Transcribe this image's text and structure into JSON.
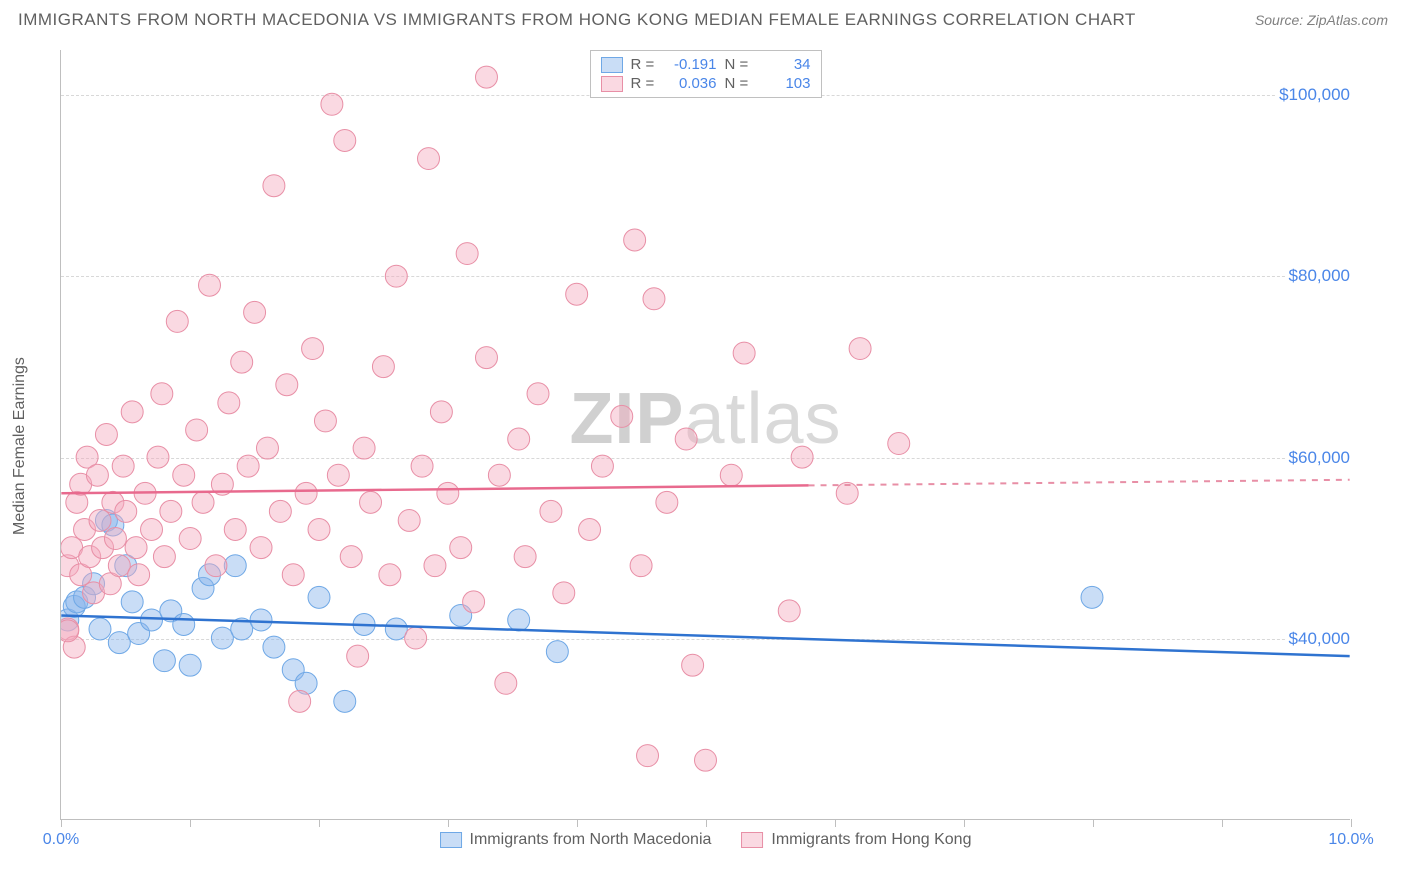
{
  "title": "IMMIGRANTS FROM NORTH MACEDONIA VS IMMIGRANTS FROM HONG KONG MEDIAN FEMALE EARNINGS CORRELATION CHART",
  "source": "Source: ZipAtlas.com",
  "ylabel": "Median Female Earnings",
  "watermark_zip": "ZIP",
  "watermark_atlas": "atlas",
  "chart": {
    "type": "scatter",
    "xlim": [
      0,
      10
    ],
    "ylim": [
      20000,
      105000
    ],
    "xticks": [
      0,
      1,
      2,
      3,
      4,
      5,
      6,
      7,
      8,
      9,
      10
    ],
    "xtick_labels": {
      "0": "0.0%",
      "10": "10.0%"
    },
    "yticks": [
      40000,
      60000,
      80000,
      100000
    ],
    "ytick_labels": {
      "40000": "$40,000",
      "60000": "$60,000",
      "80000": "$80,000",
      "100000": "$100,000"
    },
    "grid_color": "#d8d8d8",
    "axis_color": "#bfbfbf",
    "background_color": "#ffffff",
    "tick_label_color": "#4a86e8",
    "point_radius": 11
  },
  "series": [
    {
      "id": "macedonia",
      "label": "Immigrants from North Macedonia",
      "fill_color": "rgba(135,180,235,0.45)",
      "stroke_color": "#6fa8e6",
      "line_color": "#2f73d0",
      "R": "-0.191",
      "N": "34",
      "trend": {
        "x1": 0.0,
        "y1": 42500,
        "x2": 10.0,
        "y2": 38000,
        "solid_until_x": 10.0
      },
      "points": [
        [
          0.05,
          42000
        ],
        [
          0.1,
          43500
        ],
        [
          0.12,
          44000
        ],
        [
          0.18,
          44500
        ],
        [
          0.25,
          46000
        ],
        [
          0.3,
          41000
        ],
        [
          0.35,
          53000
        ],
        [
          0.4,
          52500
        ],
        [
          0.45,
          39500
        ],
        [
          0.5,
          48000
        ],
        [
          0.55,
          44000
        ],
        [
          0.6,
          40500
        ],
        [
          0.7,
          42000
        ],
        [
          0.8,
          37500
        ],
        [
          0.85,
          43000
        ],
        [
          0.95,
          41500
        ],
        [
          1.0,
          37000
        ],
        [
          1.1,
          45500
        ],
        [
          1.15,
          47000
        ],
        [
          1.25,
          40000
        ],
        [
          1.35,
          48000
        ],
        [
          1.4,
          41000
        ],
        [
          1.55,
          42000
        ],
        [
          1.65,
          39000
        ],
        [
          1.8,
          36500
        ],
        [
          1.9,
          35000
        ],
        [
          2.0,
          44500
        ],
        [
          2.2,
          33000
        ],
        [
          2.35,
          41500
        ],
        [
          2.6,
          41000
        ],
        [
          3.1,
          42500
        ],
        [
          3.55,
          42000
        ],
        [
          3.85,
          38500
        ],
        [
          8.0,
          44500
        ]
      ]
    },
    {
      "id": "hongkong",
      "label": "Immigrants from Hong Kong",
      "fill_color": "rgba(245,170,190,0.45)",
      "stroke_color": "#e88fa6",
      "line_color": "#e86a8e",
      "R": "0.036",
      "N": "103",
      "trend": {
        "x1": 0.0,
        "y1": 56000,
        "x2": 10.0,
        "y2": 57500,
        "solid_until_x": 5.8
      },
      "points": [
        [
          0.05,
          41000
        ],
        [
          0.05,
          48000
        ],
        [
          0.08,
          50000
        ],
        [
          0.1,
          39000
        ],
        [
          0.12,
          55000
        ],
        [
          0.15,
          47000
        ],
        [
          0.15,
          57000
        ],
        [
          0.18,
          52000
        ],
        [
          0.2,
          60000
        ],
        [
          0.22,
          49000
        ],
        [
          0.25,
          45000
        ],
        [
          0.28,
          58000
        ],
        [
          0.3,
          53000
        ],
        [
          0.32,
          50000
        ],
        [
          0.35,
          62500
        ],
        [
          0.38,
          46000
        ],
        [
          0.4,
          55000
        ],
        [
          0.42,
          51000
        ],
        [
          0.45,
          48000
        ],
        [
          0.48,
          59000
        ],
        [
          0.5,
          54000
        ],
        [
          0.55,
          65000
        ],
        [
          0.58,
          50000
        ],
        [
          0.6,
          47000
        ],
        [
          0.65,
          56000
        ],
        [
          0.7,
          52000
        ],
        [
          0.75,
          60000
        ],
        [
          0.78,
          67000
        ],
        [
          0.8,
          49000
        ],
        [
          0.85,
          54000
        ],
        [
          0.9,
          75000
        ],
        [
          0.95,
          58000
        ],
        [
          1.0,
          51000
        ],
        [
          1.05,
          63000
        ],
        [
          1.1,
          55000
        ],
        [
          1.15,
          79000
        ],
        [
          1.2,
          48000
        ],
        [
          1.25,
          57000
        ],
        [
          1.3,
          66000
        ],
        [
          1.35,
          52000
        ],
        [
          1.4,
          70500
        ],
        [
          1.45,
          59000
        ],
        [
          1.5,
          76000
        ],
        [
          1.55,
          50000
        ],
        [
          1.6,
          61000
        ],
        [
          1.65,
          90000
        ],
        [
          1.7,
          54000
        ],
        [
          1.75,
          68000
        ],
        [
          1.8,
          47000
        ],
        [
          1.85,
          33000
        ],
        [
          1.9,
          56000
        ],
        [
          1.95,
          72000
        ],
        [
          2.0,
          52000
        ],
        [
          2.05,
          64000
        ],
        [
          2.15,
          58000
        ],
        [
          2.2,
          95000
        ],
        [
          2.25,
          49000
        ],
        [
          2.3,
          38000
        ],
        [
          2.35,
          61000
        ],
        [
          2.4,
          55000
        ],
        [
          2.5,
          70000
        ],
        [
          2.55,
          47000
        ],
        [
          2.6,
          80000
        ],
        [
          2.7,
          53000
        ],
        [
          2.75,
          40000
        ],
        [
          2.8,
          59000
        ],
        [
          2.85,
          93000
        ],
        [
          2.9,
          48000
        ],
        [
          2.95,
          65000
        ],
        [
          3.0,
          56000
        ],
        [
          3.1,
          50000
        ],
        [
          3.15,
          82500
        ],
        [
          3.2,
          44000
        ],
        [
          3.3,
          71000
        ],
        [
          3.4,
          58000
        ],
        [
          3.45,
          35000
        ],
        [
          3.55,
          62000
        ],
        [
          3.6,
          49000
        ],
        [
          3.7,
          67000
        ],
        [
          3.8,
          54000
        ],
        [
          3.9,
          45000
        ],
        [
          4.0,
          78000
        ],
        [
          4.1,
          52000
        ],
        [
          4.2,
          59000
        ],
        [
          4.35,
          64500
        ],
        [
          4.45,
          84000
        ],
        [
          4.5,
          48000
        ],
        [
          4.55,
          27000
        ],
        [
          4.7,
          55000
        ],
        [
          4.85,
          62000
        ],
        [
          4.9,
          37000
        ],
        [
          5.0,
          26500
        ],
        [
          5.2,
          58000
        ],
        [
          5.3,
          71500
        ],
        [
          5.65,
          43000
        ],
        [
          5.75,
          60000
        ],
        [
          6.1,
          56000
        ],
        [
          6.2,
          72000
        ],
        [
          6.5,
          61500
        ],
        [
          3.3,
          102000
        ],
        [
          2.1,
          99000
        ],
        [
          4.6,
          77500
        ],
        [
          0.05,
          40800
        ]
      ]
    }
  ],
  "legend_top": {
    "R_label": "R =",
    "N_label": "N ="
  }
}
